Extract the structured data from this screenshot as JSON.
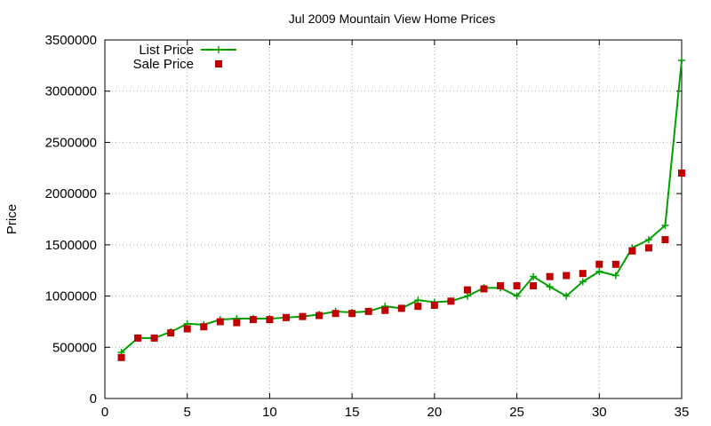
{
  "chart_data": {
    "type": "line",
    "title": "Jul 2009 Mountain View Home Prices",
    "xlabel": "",
    "ylabel": "Price",
    "xlim": [
      0,
      35
    ],
    "ylim": [
      0,
      3500000
    ],
    "xticks": [
      0,
      5,
      10,
      15,
      20,
      25,
      30,
      35
    ],
    "yticks": [
      0,
      500000,
      1000000,
      1500000,
      2000000,
      2500000,
      3000000,
      3500000
    ],
    "grid": true,
    "legend_position": "top-left",
    "series": [
      {
        "name": "List Price",
        "style": "line-with-plus-markers",
        "color": "#00a000",
        "x": [
          1,
          2,
          3,
          4,
          5,
          6,
          7,
          8,
          9,
          10,
          11,
          12,
          13,
          14,
          15,
          16,
          17,
          18,
          19,
          20,
          21,
          22,
          23,
          24,
          25,
          26,
          27,
          28,
          29,
          30,
          31,
          32,
          33,
          34,
          35
        ],
        "values": [
          450000,
          590000,
          590000,
          650000,
          730000,
          720000,
          770000,
          780000,
          780000,
          780000,
          790000,
          800000,
          820000,
          850000,
          840000,
          850000,
          900000,
          880000,
          960000,
          940000,
          950000,
          1000000,
          1080000,
          1080000,
          1000000,
          1190000,
          1090000,
          1000000,
          1140000,
          1240000,
          1200000,
          1470000,
          1550000,
          1690000,
          3300000
        ]
      },
      {
        "name": "Sale Price",
        "style": "square-markers",
        "color": "#c00000",
        "x": [
          1,
          2,
          3,
          4,
          5,
          6,
          7,
          8,
          9,
          10,
          11,
          12,
          13,
          14,
          15,
          16,
          17,
          18,
          19,
          20,
          21,
          22,
          23,
          24,
          25,
          26,
          27,
          28,
          29,
          30,
          31,
          32,
          33,
          34,
          35
        ],
        "values": [
          400000,
          590000,
          590000,
          640000,
          680000,
          700000,
          750000,
          740000,
          770000,
          770000,
          790000,
          800000,
          810000,
          830000,
          830000,
          850000,
          860000,
          880000,
          900000,
          910000,
          950000,
          1060000,
          1070000,
          1100000,
          1100000,
          1100000,
          1190000,
          1200000,
          1220000,
          1310000,
          1310000,
          1440000,
          1470000,
          1550000,
          2200000
        ]
      }
    ]
  }
}
